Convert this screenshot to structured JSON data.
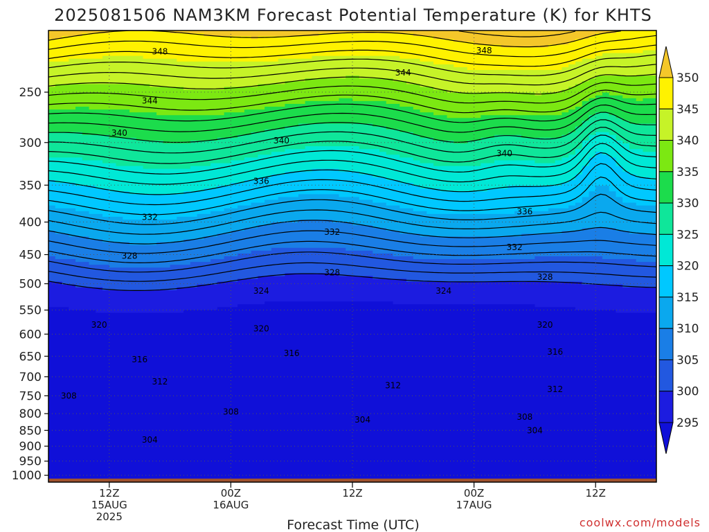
{
  "chart_data": {
    "type": "heatmap",
    "title": "2025081506 NAM3KM Forecast Potential Temperature (K) for KHTS",
    "xlabel": "Forecast Time (UTC)",
    "ylabel": "",
    "x_ticks": [
      {
        "hour": 6,
        "lines": [
          "12Z",
          "15AUG",
          "2025"
        ]
      },
      {
        "hour": 18,
        "lines": [
          "00Z",
          "16AUG"
        ]
      },
      {
        "hour": 30,
        "lines": [
          "12Z"
        ]
      },
      {
        "hour": 42,
        "lines": [
          "00Z",
          "17AUG"
        ]
      },
      {
        "hour": 54,
        "lines": [
          "12Z"
        ]
      }
    ],
    "x_range_hours": [
      0,
      60
    ],
    "y_ticks": [
      "250",
      "300",
      "350",
      "400",
      "450",
      "500",
      "550",
      "600",
      "650",
      "700",
      "750",
      "800",
      "850",
      "900",
      "950",
      "1000"
    ],
    "y_range_hpa": [
      200,
      1025
    ],
    "y_scale": "log",
    "colorbar": {
      "labels": [
        "350",
        "345",
        "340",
        "335",
        "330",
        "325",
        "320",
        "315",
        "310",
        "305",
        "300",
        "295"
      ],
      "colors": [
        "#f4c72a",
        "#fff200",
        "#c6f328",
        "#7ce812",
        "#1cdc4c",
        "#0fe69a",
        "#00e8d6",
        "#00c8ff",
        "#0aa8ee",
        "#1a7ee6",
        "#2258e0",
        "#1c1ce0",
        "#1010d8"
      ]
    },
    "contour_labels": [
      {
        "text": "348",
        "hour": 11,
        "p": 216
      },
      {
        "text": "348",
        "hour": 43,
        "p": 215
      },
      {
        "text": "344",
        "hour": 35,
        "p": 233
      },
      {
        "text": "344",
        "hour": 10,
        "p": 258
      },
      {
        "text": "340",
        "hour": 7,
        "p": 290
      },
      {
        "text": "340",
        "hour": 23,
        "p": 298
      },
      {
        "text": "340",
        "hour": 45,
        "p": 312
      },
      {
        "text": "336",
        "hour": 21,
        "p": 345
      },
      {
        "text": "336",
        "hour": 47,
        "p": 385
      },
      {
        "text": "332",
        "hour": 10,
        "p": 393
      },
      {
        "text": "332",
        "hour": 28,
        "p": 415
      },
      {
        "text": "332",
        "hour": 46,
        "p": 438
      },
      {
        "text": "328",
        "hour": 8,
        "p": 452
      },
      {
        "text": "328",
        "hour": 28,
        "p": 480
      },
      {
        "text": "328",
        "hour": 49,
        "p": 488
      },
      {
        "text": "324",
        "hour": 21,
        "p": 513
      },
      {
        "text": "324",
        "hour": 39,
        "p": 513
      },
      {
        "text": "320",
        "hour": 5,
        "p": 580
      },
      {
        "text": "320",
        "hour": 21,
        "p": 588
      },
      {
        "text": "320",
        "hour": 49,
        "p": 580
      },
      {
        "text": "316",
        "hour": 9,
        "p": 658
      },
      {
        "text": "316",
        "hour": 24,
        "p": 643
      },
      {
        "text": "316",
        "hour": 50,
        "p": 640
      },
      {
        "text": "312",
        "hour": 11,
        "p": 713
      },
      {
        "text": "312",
        "hour": 34,
        "p": 723
      },
      {
        "text": "312",
        "hour": 50,
        "p": 733
      },
      {
        "text": "308",
        "hour": 2,
        "p": 750
      },
      {
        "text": "308",
        "hour": 18,
        "p": 795
      },
      {
        "text": "308",
        "hour": 47,
        "p": 810
      },
      {
        "text": "304",
        "hour": 31,
        "p": 818
      },
      {
        "text": "304",
        "hour": 48,
        "p": 850
      },
      {
        "text": "304",
        "hour": 10,
        "p": 880
      }
    ],
    "grid": true,
    "ground_color": "#a0522d"
  },
  "credit": "coolwx.com/models"
}
